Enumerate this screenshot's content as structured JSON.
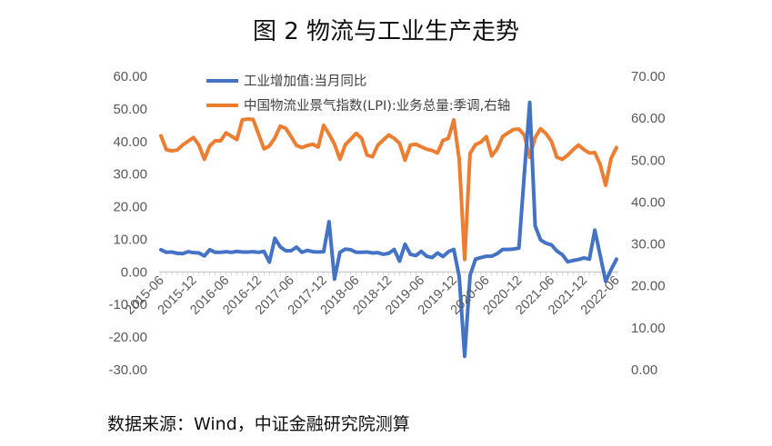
{
  "title": "图 2 物流与工业生产走势",
  "source": "数据来源：Wind，中证金融研究院测算",
  "chart_data": {
    "type": "line",
    "left_axis": {
      "ticks": [
        "60.00",
        "50.00",
        "40.00",
        "30.00",
        "20.00",
        "10.00",
        "0.00",
        "-10.00",
        "-20.00",
        "-30.00"
      ],
      "ylim": [
        -30,
        60
      ]
    },
    "right_axis": {
      "ticks": [
        "70.00",
        "60.00",
        "50.00",
        "40.00",
        "30.00",
        "20.00",
        "10.00",
        "0.00"
      ],
      "ylim": [
        0,
        70
      ]
    },
    "x_tick_labels": [
      "2015-06",
      "2015-12",
      "2016-06",
      "2016-12",
      "2017-06",
      "2017-12",
      "2018-06",
      "2018-12",
      "2019-06",
      "2019-12",
      "2020-06",
      "2020-12",
      "2021-06",
      "2021-12",
      "2022-06"
    ],
    "x_months": [
      "2015-06",
      "2015-07",
      "2015-08",
      "2015-09",
      "2015-10",
      "2015-11",
      "2015-12",
      "2016-01",
      "2016-02",
      "2016-03",
      "2016-04",
      "2016-05",
      "2016-06",
      "2016-07",
      "2016-08",
      "2016-09",
      "2016-10",
      "2016-11",
      "2016-12",
      "2017-01",
      "2017-02",
      "2017-03",
      "2017-04",
      "2017-05",
      "2017-06",
      "2017-07",
      "2017-08",
      "2017-09",
      "2017-10",
      "2017-11",
      "2017-12",
      "2018-01",
      "2018-02",
      "2018-03",
      "2018-04",
      "2018-05",
      "2018-06",
      "2018-07",
      "2018-08",
      "2018-09",
      "2018-10",
      "2018-11",
      "2018-12",
      "2019-01",
      "2019-02",
      "2019-03",
      "2019-04",
      "2019-05",
      "2019-06",
      "2019-07",
      "2019-08",
      "2019-09",
      "2019-10",
      "2019-11",
      "2019-12",
      "2020-01",
      "2020-02",
      "2020-03",
      "2020-04",
      "2020-05",
      "2020-06",
      "2020-07",
      "2020-08",
      "2020-09",
      "2020-10",
      "2020-11",
      "2020-12",
      "2021-01",
      "2021-02",
      "2021-03",
      "2021-04",
      "2021-05",
      "2021-06",
      "2021-07",
      "2021-08",
      "2021-09",
      "2021-10",
      "2021-11",
      "2021-12",
      "2022-01",
      "2022-02",
      "2022-03",
      "2022-04",
      "2022-05",
      "2022-06"
    ],
    "series": [
      {
        "name": "工业增加值:当月同比",
        "axis": "left",
        "color": "#4472C4",
        "values": [
          6.8,
          6.0,
          6.1,
          5.7,
          5.6,
          6.2,
          5.9,
          5.8,
          4.9,
          6.8,
          6.0,
          6.0,
          6.2,
          6.0,
          6.3,
          6.1,
          6.1,
          6.2,
          6.0,
          6.3,
          3.0,
          10.3,
          7.7,
          6.5,
          6.5,
          7.6,
          6.0,
          6.6,
          6.2,
          6.1,
          6.2,
          15.4,
          -2.2,
          6.0,
          7.0,
          6.8,
          6.0,
          6.0,
          6.1,
          5.8,
          5.9,
          5.4,
          5.7,
          6.9,
          3.3,
          8.5,
          5.4,
          5.0,
          6.3,
          4.8,
          4.4,
          5.8,
          4.7,
          6.2,
          6.9,
          -1.5,
          -25.9,
          -1.1,
          3.9,
          4.4,
          4.8,
          4.8,
          5.6,
          6.9,
          6.9,
          7.0,
          7.3,
          30.0,
          52.0,
          14.1,
          9.8,
          8.8,
          8.3,
          6.4,
          5.3,
          3.1,
          3.5,
          3.8,
          4.3,
          3.9,
          12.8,
          5.0,
          -2.9,
          0.7,
          3.9
        ]
      },
      {
        "name": "中国物流业景气指数(LPI):业务总量:季调,右轴",
        "axis": "right",
        "color": "#ED7D31",
        "values": [
          55.8,
          52.5,
          52.2,
          52.4,
          53.6,
          54.5,
          55.4,
          53.6,
          50.2,
          53.4,
          54.6,
          54.6,
          56.5,
          55.7,
          54.9,
          59.6,
          59.8,
          59.7,
          56.2,
          52.7,
          53.4,
          55.3,
          58.1,
          57.6,
          55.6,
          53.5,
          53.0,
          53.5,
          53.8,
          53.1,
          58.3,
          56.2,
          53.8,
          50.2,
          53.7,
          55.0,
          56.4,
          55.2,
          51.2,
          50.8,
          53.6,
          54.8,
          56.0,
          55.2,
          54.0,
          50.0,
          53.6,
          53.8,
          53.2,
          52.6,
          52.3,
          51.7,
          54.7,
          55.2,
          59.6,
          50.1,
          26.3,
          51.6,
          53.7,
          54.3,
          55.6,
          51.0,
          52.7,
          55.6,
          56.5,
          57.3,
          57.4,
          56.0,
          50.7,
          55.4,
          57.5,
          56.3,
          54.5,
          50.7,
          50.2,
          51.2,
          52.5,
          53.6,
          52.5,
          51.7,
          51.8,
          48.9,
          44.0,
          50.4,
          53.0
        ]
      }
    ]
  }
}
